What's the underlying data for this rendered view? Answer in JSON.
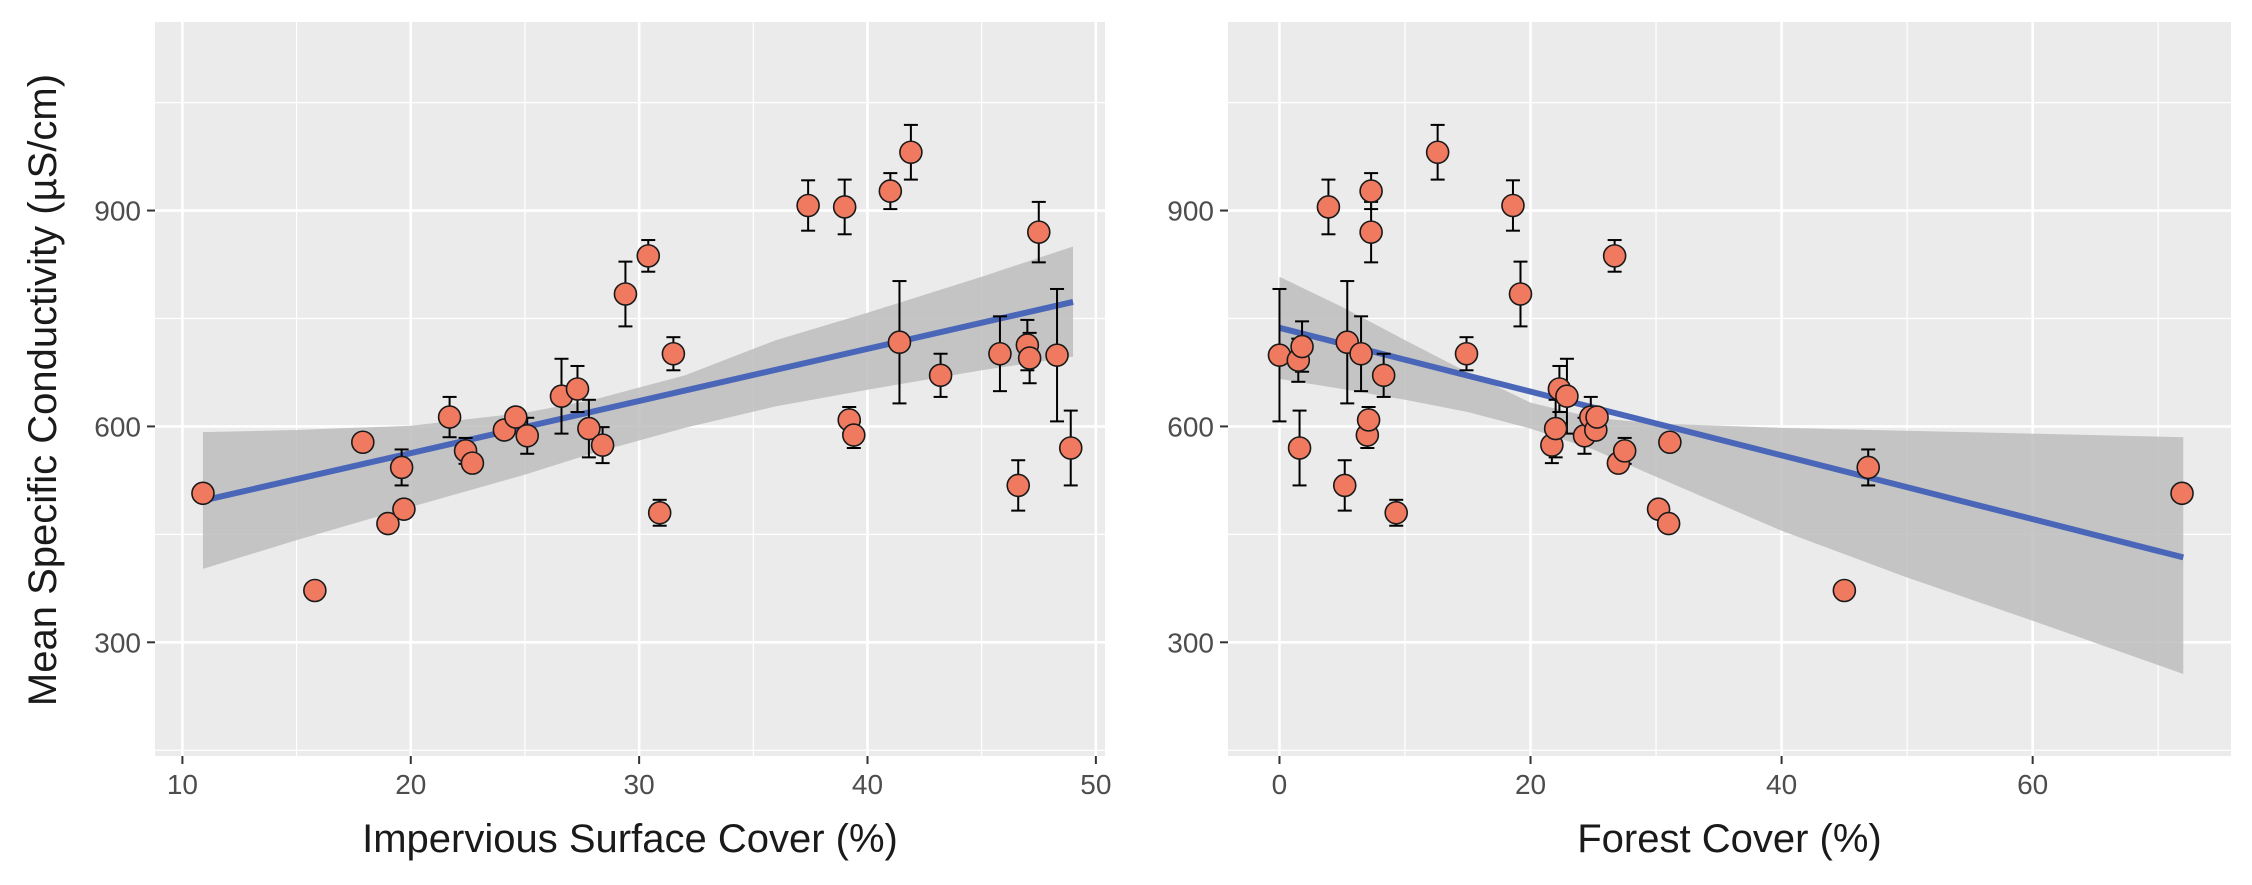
{
  "y_axis_title": "Mean Specific Conductivity (µS/cm)",
  "colors": {
    "panel_bg": "#ebebeb",
    "grid": "#ffffff",
    "point_fill": "#f07a60",
    "point_stroke": "#1a1a1a",
    "trend_line": "#4a66b8",
    "ribbon": "#bdbdbd",
    "tick_label": "#4d4d4d"
  },
  "chart_data": [
    {
      "type": "scatter",
      "xlabel": "Impervious Surface Cover (%)",
      "ylabel": "Mean Specific Conductivity (µS/cm)",
      "xlim": [
        8.8,
        50.4
      ],
      "ylim": [
        142,
        1162
      ],
      "x_ticks": [
        10,
        20,
        30,
        40,
        50
      ],
      "y_ticks": [
        300,
        600,
        900
      ],
      "trend": {
        "x0": 10.9,
        "y0": 497,
        "x1": 49.0,
        "y1": 773
      },
      "ribbon": [
        [
          10.9,
          592,
          402
        ],
        [
          15,
          595,
          442
        ],
        [
          20,
          601,
          488
        ],
        [
          25,
          619,
          533
        ],
        [
          28,
          637,
          563
        ],
        [
          32,
          671,
          598
        ],
        [
          36,
          720,
          628
        ],
        [
          40,
          758,
          651
        ],
        [
          45,
          808,
          678
        ],
        [
          49.0,
          850,
          697
        ]
      ],
      "points": [
        {
          "x": 10.9,
          "y": 507,
          "e": 10
        },
        {
          "x": 15.8,
          "y": 372,
          "e": 0
        },
        {
          "x": 17.9,
          "y": 578,
          "e": 0
        },
        {
          "x": 19.0,
          "y": 465,
          "e": 0
        },
        {
          "x": 19.6,
          "y": 543,
          "e": 25
        },
        {
          "x": 19.7,
          "y": 485,
          "e": 0
        },
        {
          "x": 21.7,
          "y": 613,
          "e": 28
        },
        {
          "x": 22.4,
          "y": 566,
          "e": 18
        },
        {
          "x": 22.7,
          "y": 549,
          "e": 0
        },
        {
          "x": 24.1,
          "y": 595,
          "e": 0
        },
        {
          "x": 24.6,
          "y": 613,
          "e": 0
        },
        {
          "x": 25.1,
          "y": 587,
          "e": 25
        },
        {
          "x": 26.6,
          "y": 642,
          "e": 52
        },
        {
          "x": 27.3,
          "y": 652,
          "e": 32
        },
        {
          "x": 27.8,
          "y": 597,
          "e": 40
        },
        {
          "x": 28.4,
          "y": 574,
          "e": 25
        },
        {
          "x": 29.4,
          "y": 784,
          "e": 45
        },
        {
          "x": 30.4,
          "y": 837,
          "e": 22
        },
        {
          "x": 30.9,
          "y": 480,
          "e": 18
        },
        {
          "x": 31.5,
          "y": 701,
          "e": 23
        },
        {
          "x": 37.4,
          "y": 907,
          "e": 35
        },
        {
          "x": 39.0,
          "y": 905,
          "e": 38
        },
        {
          "x": 39.2,
          "y": 609,
          "e": 18
        },
        {
          "x": 39.4,
          "y": 588,
          "e": 18
        },
        {
          "x": 41.0,
          "y": 927,
          "e": 25
        },
        {
          "x": 41.4,
          "y": 717,
          "e": 85
        },
        {
          "x": 41.9,
          "y": 981,
          "e": 38
        },
        {
          "x": 43.2,
          "y": 671,
          "e": 30
        },
        {
          "x": 45.8,
          "y": 701,
          "e": 52
        },
        {
          "x": 46.6,
          "y": 518,
          "e": 35
        },
        {
          "x": 47.0,
          "y": 713,
          "e": 35
        },
        {
          "x": 47.1,
          "y": 695,
          "e": 35
        },
        {
          "x": 47.5,
          "y": 870,
          "e": 42
        },
        {
          "x": 48.3,
          "y": 699,
          "e": 92
        },
        {
          "x": 48.9,
          "y": 570,
          "e": 52
        }
      ]
    },
    {
      "type": "scatter",
      "xlabel": "Forest Cover (%)",
      "ylabel": "",
      "xlim": [
        -4.1,
        75.8
      ],
      "ylim": [
        142,
        1162
      ],
      "x_ticks": [
        0,
        20,
        40,
        60
      ],
      "y_ticks": [
        300,
        600,
        900
      ],
      "trend": {
        "x0": 0.0,
        "y0": 737,
        "x1": 72.0,
        "y1": 418
      },
      "ribbon": [
        [
          0,
          808,
          666
        ],
        [
          5,
          766,
          652
        ],
        [
          10,
          720,
          637
        ],
        [
          15,
          675,
          620
        ],
        [
          20,
          633,
          597
        ],
        [
          25,
          612,
          568
        ],
        [
          30,
          604,
          530
        ],
        [
          40,
          598,
          455
        ],
        [
          50,
          594,
          390
        ],
        [
          60,
          590,
          330
        ],
        [
          72,
          585,
          256
        ]
      ],
      "points": [
        {
          "x": 0.0,
          "y": 699,
          "e": 92
        },
        {
          "x": 1.5,
          "y": 692,
          "e": 30
        },
        {
          "x": 1.6,
          "y": 570,
          "e": 52
        },
        {
          "x": 1.8,
          "y": 711,
          "e": 35
        },
        {
          "x": 3.9,
          "y": 905,
          "e": 38
        },
        {
          "x": 5.2,
          "y": 518,
          "e": 35
        },
        {
          "x": 5.4,
          "y": 717,
          "e": 85
        },
        {
          "x": 6.5,
          "y": 701,
          "e": 52
        },
        {
          "x": 7.0,
          "y": 588,
          "e": 18
        },
        {
          "x": 7.1,
          "y": 609,
          "e": 18
        },
        {
          "x": 7.3,
          "y": 927,
          "e": 25
        },
        {
          "x": 7.3,
          "y": 870,
          "e": 42
        },
        {
          "x": 8.3,
          "y": 671,
          "e": 30
        },
        {
          "x": 9.3,
          "y": 480,
          "e": 18
        },
        {
          "x": 12.6,
          "y": 981,
          "e": 38
        },
        {
          "x": 14.9,
          "y": 701,
          "e": 23
        },
        {
          "x": 18.6,
          "y": 907,
          "e": 35
        },
        {
          "x": 19.2,
          "y": 784,
          "e": 45
        },
        {
          "x": 21.7,
          "y": 574,
          "e": 25
        },
        {
          "x": 22.0,
          "y": 597,
          "e": 40
        },
        {
          "x": 22.3,
          "y": 652,
          "e": 32
        },
        {
          "x": 22.9,
          "y": 642,
          "e": 52
        },
        {
          "x": 24.3,
          "y": 587,
          "e": 25
        },
        {
          "x": 24.8,
          "y": 613,
          "e": 28
        },
        {
          "x": 25.2,
          "y": 595,
          "e": 0
        },
        {
          "x": 25.3,
          "y": 613,
          "e": 0
        },
        {
          "x": 26.7,
          "y": 837,
          "e": 22
        },
        {
          "x": 27.0,
          "y": 549,
          "e": 0
        },
        {
          "x": 27.5,
          "y": 566,
          "e": 18
        },
        {
          "x": 30.2,
          "y": 485,
          "e": 0
        },
        {
          "x": 31.0,
          "y": 465,
          "e": 0
        },
        {
          "x": 31.1,
          "y": 578,
          "e": 0
        },
        {
          "x": 45.0,
          "y": 372,
          "e": 0
        },
        {
          "x": 46.9,
          "y": 543,
          "e": 25
        },
        {
          "x": 71.9,
          "y": 507,
          "e": 10
        }
      ]
    }
  ]
}
